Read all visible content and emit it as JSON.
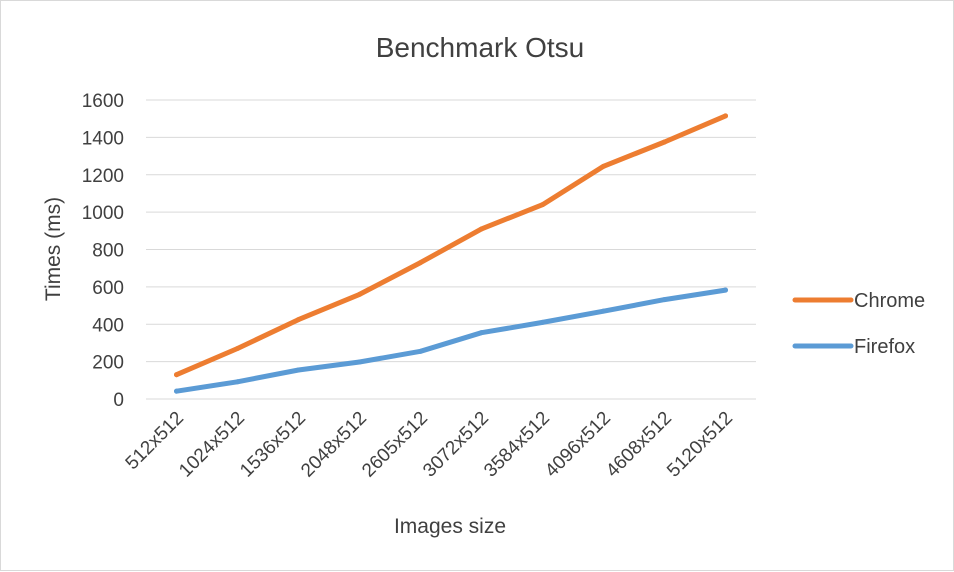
{
  "chart_data": {
    "type": "line",
    "title": "Benchmark Otsu",
    "xlabel": "Images size",
    "ylabel": "Times (ms)",
    "categories": [
      "512x512",
      "1024x512",
      "1536x512",
      "2048x512",
      "2605x512",
      "3072x512",
      "3584x512",
      "4096x512",
      "4608x512",
      "5120x512"
    ],
    "ylim": [
      0,
      1600
    ],
    "yticks": [
      0,
      200,
      400,
      600,
      800,
      1000,
      1200,
      1400,
      1600
    ],
    "grid": true,
    "legend_position": "right",
    "series": [
      {
        "name": "Chrome",
        "color": "#ed7d31",
        "values": [
          130,
          270,
          425,
          560,
          730,
          910,
          1040,
          1245,
          1375,
          1515
        ]
      },
      {
        "name": "Firefox",
        "color": "#5b9bd5",
        "values": [
          42,
          92,
          155,
          198,
          255,
          355,
          410,
          470,
          532,
          583
        ]
      }
    ]
  }
}
